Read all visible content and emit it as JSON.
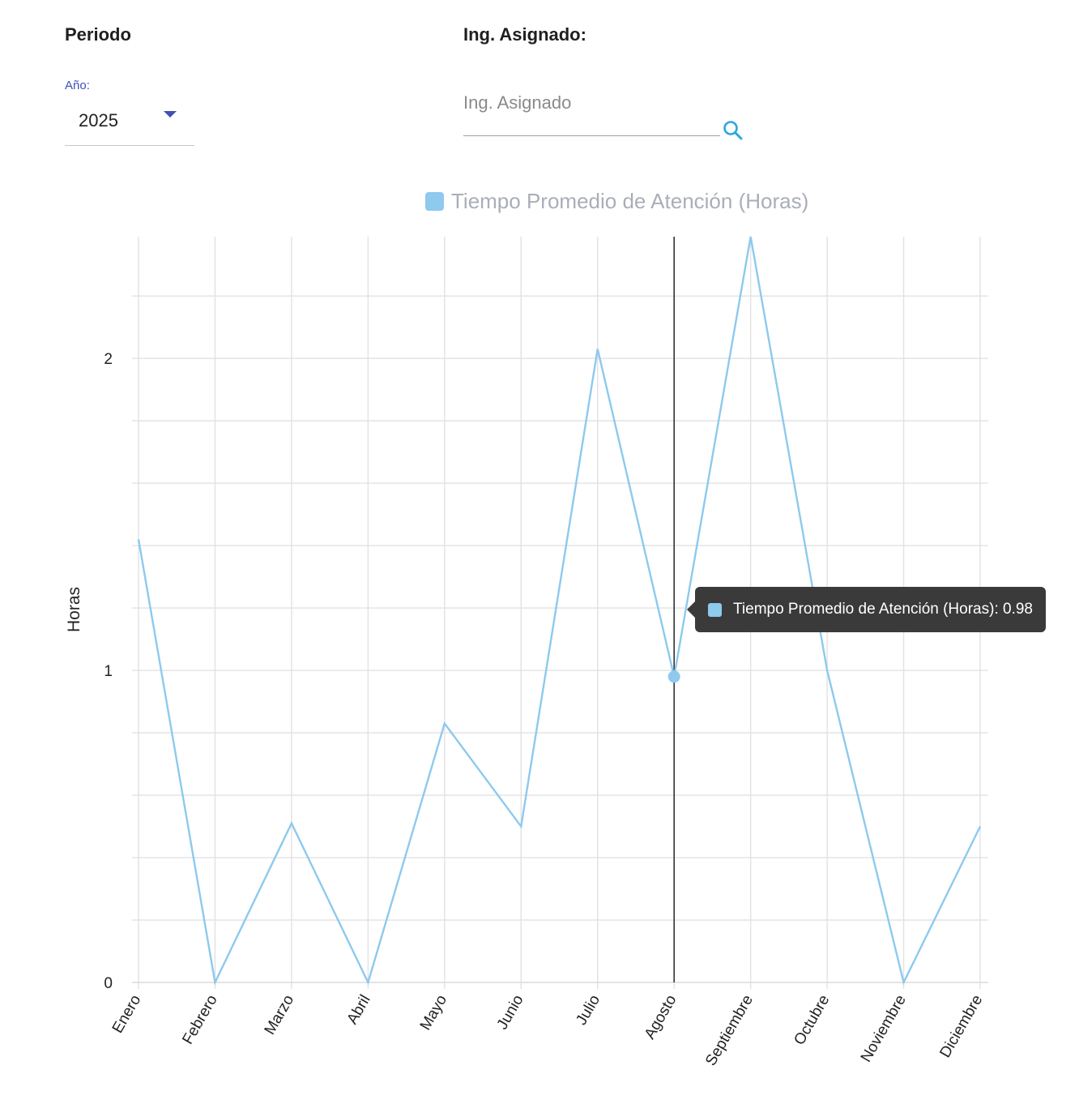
{
  "filters": {
    "periodo_title": "Periodo",
    "year_label": "Año:",
    "year_value": "2025",
    "ing_title": "Ing. Asignado:",
    "ing_placeholder": "Ing. Asignado",
    "ing_value": ""
  },
  "icons": {
    "year_dropdown": "caret-down-icon",
    "search": "search-icon"
  },
  "tooltip": {
    "label": "Tiempo Promedio de Atención (Horas): 0.98"
  },
  "colors": {
    "series": "#8ec9ee",
    "accent": "#3f51b5",
    "search_icon": "#29a8e0",
    "legend_text": "#a9aeb9",
    "tooltip_bg": "#3a3a3a"
  },
  "chart_data": {
    "type": "line",
    "ylabel": "Horas",
    "xlabel": "",
    "categories": [
      "Enero",
      "Febrero",
      "Marzo",
      "Abril",
      "Mayo",
      "Junio",
      "Julio",
      "Agosto",
      "Septiembre",
      "Octubre",
      "Noviembre",
      "Diciembre"
    ],
    "series": [
      {
        "name": "Tiempo Promedio de Atención (Horas)",
        "values": [
          1.42,
          0,
          0.51,
          0,
          0.83,
          0.5,
          2.03,
          0.98,
          2.39,
          1.0,
          0,
          0.5
        ]
      }
    ],
    "ylim": [
      0,
      2.39
    ],
    "yticks": [
      0,
      1,
      2
    ],
    "grid": true,
    "legend": "top-center",
    "highlight": {
      "category": "Agosto",
      "value": 0.98
    }
  }
}
